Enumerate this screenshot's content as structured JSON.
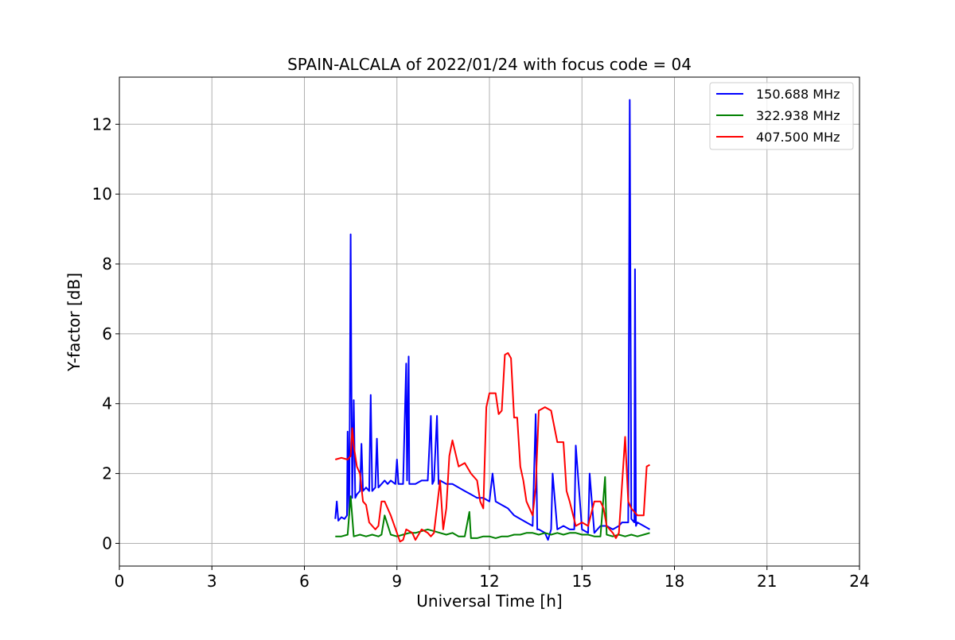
{
  "chart_data": {
    "type": "line",
    "title": "SPAIN-ALCALA of 2022/01/24 with focus code = 04",
    "xlabel": "Universal Time [h]",
    "ylabel": "Y-factor [dB]",
    "xlim": [
      0,
      24
    ],
    "ylim": [
      -0.65,
      13.35
    ],
    "xticks": [
      0,
      3,
      6,
      9,
      12,
      15,
      18,
      21,
      24
    ],
    "yticks": [
      0,
      2,
      4,
      6,
      8,
      10,
      12
    ],
    "grid": true,
    "legend_position": "top-right",
    "series": [
      {
        "name": "150.688 MHz",
        "color": "#0000ff",
        "x": [
          7.0,
          7.05,
          7.1,
          7.2,
          7.3,
          7.38,
          7.4,
          7.45,
          7.47,
          7.5,
          7.52,
          7.55,
          7.6,
          7.65,
          7.7,
          7.8,
          7.85,
          7.9,
          8.0,
          8.1,
          8.15,
          8.2,
          8.3,
          8.35,
          8.4,
          8.5,
          8.6,
          8.7,
          8.8,
          8.95,
          9.0,
          9.05,
          9.2,
          9.3,
          9.33,
          9.38,
          9.4,
          9.6,
          9.8,
          10.0,
          10.1,
          10.15,
          10.2,
          10.3,
          10.35,
          10.4,
          10.6,
          10.8,
          11.0,
          11.2,
          11.4,
          11.6,
          11.8,
          12.0,
          12.1,
          12.2,
          12.4,
          12.6,
          12.8,
          13.0,
          13.2,
          13.4,
          13.5,
          13.55,
          13.6,
          13.8,
          13.9,
          14.0,
          14.05,
          14.2,
          14.4,
          14.6,
          14.75,
          14.8,
          15.0,
          15.2,
          15.25,
          15.4,
          15.6,
          15.8,
          16.0,
          16.2,
          16.3,
          16.5,
          16.55,
          16.6,
          16.7,
          16.72,
          16.75,
          16.8,
          17.0,
          17.2
        ],
        "y": [
          0.7,
          1.2,
          0.65,
          0.75,
          0.7,
          0.8,
          3.2,
          0.8,
          3.6,
          8.85,
          5.2,
          1.3,
          4.1,
          1.3,
          1.4,
          1.5,
          2.85,
          1.5,
          1.6,
          1.5,
          4.25,
          1.5,
          1.6,
          3.0,
          1.6,
          1.7,
          1.8,
          1.7,
          1.8,
          1.7,
          2.4,
          1.7,
          1.7,
          5.15,
          1.8,
          5.35,
          1.7,
          1.7,
          1.8,
          1.8,
          3.65,
          1.7,
          1.8,
          3.65,
          1.7,
          1.8,
          1.7,
          1.7,
          1.6,
          1.5,
          1.4,
          1.3,
          1.3,
          1.2,
          2.0,
          1.2,
          1.1,
          1.0,
          0.8,
          0.7,
          0.6,
          0.5,
          3.7,
          0.4,
          0.4,
          0.3,
          0.1,
          0.4,
          2.0,
          0.4,
          0.5,
          0.4,
          0.4,
          2.8,
          0.4,
          0.3,
          2.0,
          0.3,
          0.5,
          0.5,
          0.4,
          0.5,
          0.6,
          0.6,
          12.7,
          0.7,
          0.6,
          7.85,
          0.5,
          0.6,
          0.5,
          0.4
        ]
      },
      {
        "name": "322.938 MHz",
        "color": "#008000",
        "x": [
          7.0,
          7.2,
          7.4,
          7.5,
          7.6,
          7.8,
          8.0,
          8.2,
          8.4,
          8.5,
          8.6,
          8.8,
          9.0,
          9.2,
          9.4,
          9.6,
          9.8,
          10.0,
          10.2,
          10.4,
          10.6,
          10.8,
          11.0,
          11.2,
          11.35,
          11.4,
          11.6,
          11.8,
          12.0,
          12.2,
          12.4,
          12.6,
          12.8,
          13.0,
          13.2,
          13.4,
          13.6,
          13.8,
          14.0,
          14.2,
          14.4,
          14.6,
          14.8,
          15.0,
          15.2,
          15.4,
          15.6,
          15.75,
          15.8,
          16.0,
          16.2,
          16.4,
          16.6,
          16.8,
          17.0,
          17.2
        ],
        "y": [
          0.2,
          0.2,
          0.25,
          1.35,
          0.2,
          0.25,
          0.2,
          0.25,
          0.2,
          0.25,
          0.8,
          0.25,
          0.2,
          0.25,
          0.3,
          0.3,
          0.35,
          0.4,
          0.35,
          0.3,
          0.25,
          0.3,
          0.2,
          0.2,
          0.9,
          0.15,
          0.15,
          0.2,
          0.2,
          0.15,
          0.2,
          0.2,
          0.25,
          0.25,
          0.3,
          0.3,
          0.25,
          0.3,
          0.25,
          0.3,
          0.25,
          0.3,
          0.3,
          0.25,
          0.25,
          0.2,
          0.2,
          1.9,
          0.25,
          0.2,
          0.25,
          0.2,
          0.25,
          0.2,
          0.25,
          0.3
        ]
      },
      {
        "name": "407.500 MHz",
        "color": "#ff0000",
        "x": [
          7.0,
          7.2,
          7.4,
          7.5,
          7.55,
          7.6,
          7.7,
          7.8,
          7.9,
          8.0,
          8.1,
          8.3,
          8.4,
          8.5,
          8.6,
          8.8,
          9.0,
          9.1,
          9.2,
          9.3,
          9.5,
          9.6,
          9.8,
          10.0,
          10.1,
          10.2,
          10.4,
          10.5,
          10.6,
          10.7,
          10.8,
          11.0,
          11.2,
          11.4,
          11.6,
          11.7,
          11.8,
          11.9,
          12.0,
          12.2,
          12.3,
          12.4,
          12.5,
          12.6,
          12.7,
          12.8,
          12.9,
          13.0,
          13.1,
          13.2,
          13.4,
          13.5,
          13.6,
          13.8,
          14.0,
          14.2,
          14.4,
          14.5,
          14.6,
          14.8,
          15.0,
          15.2,
          15.4,
          15.6,
          15.7,
          15.8,
          16.0,
          16.1,
          16.2,
          16.4,
          16.5,
          16.6,
          16.8,
          17.0,
          17.1,
          17.2
        ],
        "y": [
          2.4,
          2.45,
          2.4,
          2.5,
          3.3,
          2.8,
          2.2,
          2.0,
          1.2,
          1.1,
          0.6,
          0.4,
          0.5,
          1.2,
          1.2,
          0.8,
          0.3,
          0.05,
          0.1,
          0.4,
          0.3,
          0.1,
          0.4,
          0.3,
          0.2,
          0.3,
          1.8,
          0.4,
          1.0,
          2.5,
          2.95,
          2.2,
          2.3,
          2.0,
          1.8,
          1.2,
          1.0,
          3.9,
          4.3,
          4.3,
          3.7,
          3.8,
          5.4,
          5.45,
          5.3,
          3.6,
          3.6,
          2.2,
          1.8,
          1.2,
          0.8,
          1.6,
          3.8,
          3.9,
          3.8,
          2.9,
          2.9,
          1.5,
          1.2,
          0.5,
          0.6,
          0.5,
          1.2,
          1.2,
          1.0,
          0.5,
          0.3,
          0.15,
          0.3,
          3.05,
          1.2,
          1.0,
          0.8,
          0.8,
          2.2,
          2.25
        ]
      }
    ]
  }
}
